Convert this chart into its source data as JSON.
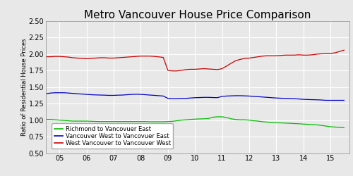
{
  "title": "Metro Vancouver House Price Comparison",
  "ylabel": "Ratio of Residential House Prices",
  "ylim": [
    0.5,
    2.5
  ],
  "yticks": [
    0.5,
    0.75,
    1.0,
    1.25,
    1.5,
    1.75,
    2.0,
    2.25,
    2.5
  ],
  "xlim": [
    2004.5,
    2015.7
  ],
  "xtick_labels": [
    "05",
    "06",
    "07",
    "08",
    "09",
    "10",
    "11",
    "12",
    "13",
    "14",
    "15"
  ],
  "xtick_positions": [
    2005,
    2006,
    2007,
    2008,
    2009,
    2010,
    2011,
    2012,
    2013,
    2014,
    2015
  ],
  "legend_labels": [
    "Richmond to Vancovuer East",
    "Vancouver West to Vancovuer East",
    "West Vancouver to Vancouver West"
  ],
  "legend_colors": [
    "#00bb00",
    "#0000cc",
    "#cc0000"
  ],
  "fig_bg": "#e8e8e8",
  "plot_bg": "#e8e8e8",
  "grid_color": "#ffffff",
  "title_fontsize": 11,
  "axis_fontsize": 7,
  "ylabel_fontsize": 6,
  "legend_fontsize": 6,
  "green_x": [
    2004.5,
    2004.67,
    2004.83,
    2005.0,
    2005.17,
    2005.33,
    2005.5,
    2005.67,
    2005.83,
    2006.0,
    2006.17,
    2006.33,
    2006.5,
    2006.67,
    2006.83,
    2007.0,
    2007.17,
    2007.33,
    2007.5,
    2007.67,
    2007.83,
    2008.0,
    2008.17,
    2008.33,
    2008.5,
    2008.67,
    2008.83,
    2009.0,
    2009.17,
    2009.33,
    2009.5,
    2009.67,
    2009.83,
    2010.0,
    2010.17,
    2010.33,
    2010.5,
    2010.67,
    2010.83,
    2011.0,
    2011.17,
    2011.33,
    2011.5,
    2011.67,
    2011.83,
    2012.0,
    2012.17,
    2012.33,
    2012.5,
    2012.67,
    2012.83,
    2013.0,
    2013.17,
    2013.33,
    2013.5,
    2013.67,
    2013.83,
    2014.0,
    2014.17,
    2014.33,
    2014.5,
    2014.67,
    2014.83,
    2015.0,
    2015.17,
    2015.33,
    2015.5
  ],
  "green_y": [
    1.01,
    1.01,
    1.005,
    1.0,
    0.995,
    0.99,
    0.985,
    0.985,
    0.985,
    0.985,
    0.982,
    0.98,
    0.978,
    0.978,
    0.978,
    0.978,
    0.978,
    0.978,
    0.978,
    0.978,
    0.978,
    0.978,
    0.978,
    0.975,
    0.975,
    0.975,
    0.975,
    0.978,
    0.982,
    0.99,
    1.0,
    1.005,
    1.01,
    1.015,
    1.018,
    1.02,
    1.025,
    1.045,
    1.05,
    1.05,
    1.04,
    1.02,
    1.01,
    1.005,
    1.005,
    1.0,
    0.99,
    0.985,
    0.975,
    0.97,
    0.965,
    0.96,
    0.958,
    0.955,
    0.952,
    0.948,
    0.945,
    0.94,
    0.936,
    0.932,
    0.928,
    0.92,
    0.91,
    0.9,
    0.895,
    0.89,
    0.885
  ],
  "blue_x": [
    2004.5,
    2004.67,
    2004.83,
    2005.0,
    2005.17,
    2005.33,
    2005.5,
    2005.67,
    2005.83,
    2006.0,
    2006.17,
    2006.33,
    2006.5,
    2006.67,
    2006.83,
    2007.0,
    2007.17,
    2007.33,
    2007.5,
    2007.67,
    2007.83,
    2008.0,
    2008.17,
    2008.33,
    2008.5,
    2008.67,
    2008.83,
    2009.0,
    2009.17,
    2009.33,
    2009.5,
    2009.67,
    2009.83,
    2010.0,
    2010.17,
    2010.33,
    2010.5,
    2010.67,
    2010.83,
    2011.0,
    2011.17,
    2011.33,
    2011.5,
    2011.67,
    2011.83,
    2012.0,
    2012.17,
    2012.33,
    2012.5,
    2012.67,
    2012.83,
    2013.0,
    2013.17,
    2013.33,
    2013.5,
    2013.67,
    2013.83,
    2014.0,
    2014.17,
    2014.33,
    2014.5,
    2014.67,
    2014.83,
    2015.0,
    2015.17,
    2015.33,
    2015.5
  ],
  "blue_y": [
    1.4,
    1.41,
    1.415,
    1.415,
    1.415,
    1.41,
    1.405,
    1.4,
    1.395,
    1.39,
    1.385,
    1.382,
    1.38,
    1.378,
    1.375,
    1.375,
    1.378,
    1.38,
    1.385,
    1.39,
    1.392,
    1.39,
    1.385,
    1.38,
    1.375,
    1.37,
    1.365,
    1.33,
    1.325,
    1.325,
    1.33,
    1.33,
    1.335,
    1.34,
    1.342,
    1.345,
    1.345,
    1.342,
    1.34,
    1.36,
    1.365,
    1.368,
    1.37,
    1.37,
    1.368,
    1.365,
    1.36,
    1.355,
    1.35,
    1.345,
    1.34,
    1.335,
    1.332,
    1.33,
    1.328,
    1.325,
    1.32,
    1.315,
    1.312,
    1.31,
    1.308,
    1.305,
    1.3,
    1.3,
    1.3,
    1.3,
    1.3
  ],
  "red_x": [
    2004.5,
    2004.67,
    2004.83,
    2005.0,
    2005.17,
    2005.33,
    2005.5,
    2005.67,
    2005.83,
    2006.0,
    2006.17,
    2006.33,
    2006.5,
    2006.67,
    2006.83,
    2007.0,
    2007.17,
    2007.33,
    2007.5,
    2007.67,
    2007.83,
    2008.0,
    2008.17,
    2008.33,
    2008.5,
    2008.67,
    2008.83,
    2009.0,
    2009.17,
    2009.33,
    2009.5,
    2009.67,
    2009.83,
    2010.0,
    2010.17,
    2010.33,
    2010.5,
    2010.67,
    2010.83,
    2011.0,
    2011.17,
    2011.33,
    2011.5,
    2011.67,
    2011.83,
    2012.0,
    2012.17,
    2012.33,
    2012.5,
    2012.67,
    2012.83,
    2013.0,
    2013.17,
    2013.33,
    2013.5,
    2013.67,
    2013.83,
    2014.0,
    2014.17,
    2014.33,
    2014.5,
    2014.67,
    2014.83,
    2015.0,
    2015.17,
    2015.33,
    2015.5
  ],
  "red_y": [
    1.96,
    1.96,
    1.965,
    1.965,
    1.96,
    1.955,
    1.945,
    1.94,
    1.935,
    1.93,
    1.935,
    1.94,
    1.945,
    1.945,
    1.94,
    1.94,
    1.945,
    1.95,
    1.955,
    1.96,
    1.965,
    1.97,
    1.97,
    1.97,
    1.965,
    1.958,
    1.95,
    1.755,
    1.745,
    1.745,
    1.755,
    1.765,
    1.77,
    1.77,
    1.775,
    1.78,
    1.775,
    1.77,
    1.765,
    1.78,
    1.82,
    1.86,
    1.9,
    1.92,
    1.935,
    1.94,
    1.95,
    1.96,
    1.97,
    1.975,
    1.975,
    1.975,
    1.98,
    1.985,
    1.985,
    1.985,
    1.99,
    1.985,
    1.985,
    1.99,
    2.0,
    2.005,
    2.01,
    2.01,
    2.02,
    2.04,
    2.06
  ]
}
